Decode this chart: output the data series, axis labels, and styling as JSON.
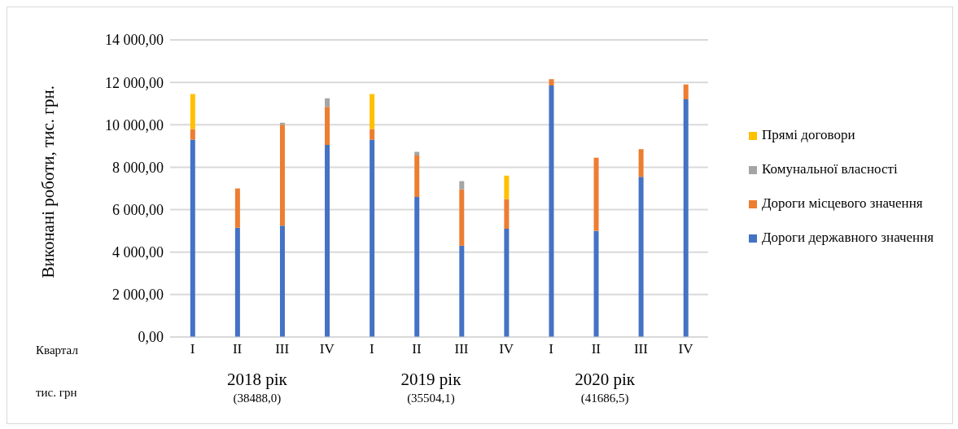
{
  "chart_data": {
    "type": "bar",
    "stacked": true,
    "ylabel": "Виконані роботи, тис. грн.",
    "categories": [
      "I",
      "II",
      "III",
      "IV",
      "I",
      "II",
      "III",
      "IV",
      "I",
      "II",
      "III",
      "IV"
    ],
    "series": [
      {
        "name": "Дороги державного значення",
        "color": "#4472c4",
        "values": [
          9300,
          5150,
          5250,
          9050,
          9300,
          6600,
          4300,
          5100,
          11850,
          5000,
          7550,
          11200
        ]
      },
      {
        "name": "Дороги місцевого значення",
        "color": "#ed7d31",
        "values": [
          500,
          1850,
          4750,
          1800,
          500,
          1950,
          2650,
          1400,
          300,
          3450,
          1300,
          700
        ]
      },
      {
        "name": "Комунальної власності",
        "color": "#a5a5a5",
        "values": [
          null,
          null,
          100,
          400,
          null,
          180,
          400,
          null,
          null,
          null,
          null,
          null
        ]
      },
      {
        "name": "Прямі договори",
        "color": "#ffc000",
        "values": [
          1650,
          null,
          null,
          null,
          1650,
          null,
          null,
          1100,
          null,
          null,
          null,
          null
        ]
      }
    ],
    "ylim": [
      0,
      14000
    ],
    "yticks": [
      {
        "value": 0,
        "label": "0,00"
      },
      {
        "value": 2000,
        "label": "2 000,00"
      },
      {
        "value": 4000,
        "label": "4 000,00"
      },
      {
        "value": 6000,
        "label": "6 000,00"
      },
      {
        "value": 8000,
        "label": "8 000,00"
      },
      {
        "value": 10000,
        "label": "10 000,00"
      },
      {
        "value": 12000,
        "label": "12 000,00"
      },
      {
        "value": 14000,
        "label": "14 000,00"
      }
    ],
    "grid": "y",
    "legend": "right",
    "annotations": [
      "Квартал",
      "тис. грн",
      "2018 рік",
      "(38488,0)",
      "2019 рік",
      "(35504,1)",
      "2020 рік",
      "(41686,5)"
    ]
  }
}
